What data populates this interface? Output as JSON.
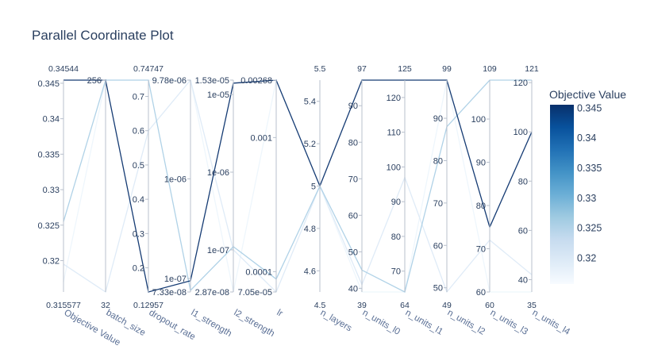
{
  "chart_data": {
    "type": "parallel-coordinates",
    "title": "Parallel Coordinate Plot",
    "colorbar": {
      "title": "Objective Value",
      "min": 0.315577,
      "max": 0.34544,
      "ticks": [
        "0.32",
        "0.325",
        "0.33",
        "0.335",
        "0.34",
        "0.345"
      ],
      "colorscale": [
        "#f7fbff",
        "#deebf7",
        "#c6dbef",
        "#9ecae1",
        "#6baed6",
        "#4292c6",
        "#2171b5",
        "#08519c",
        "#08306b"
      ]
    },
    "dimensions": [
      {
        "label": "Objective Value",
        "range_min": "0.315577",
        "range_max": "0.34544",
        "scale": "linear",
        "min": 0.315577,
        "max": 0.34544,
        "ticks": [
          {
            "v": 0.32,
            "t": "0.32"
          },
          {
            "v": 0.325,
            "t": "0.325"
          },
          {
            "v": 0.33,
            "t": "0.33"
          },
          {
            "v": 0.335,
            "t": "0.335"
          },
          {
            "v": 0.34,
            "t": "0.34"
          },
          {
            "v": 0.345,
            "t": "0.345"
          }
        ]
      },
      {
        "label": "batch_size",
        "range_min": "32",
        "range_max": "",
        "scale": "linear",
        "min": 32,
        "max": 256,
        "ticks": [
          {
            "v": 256,
            "t": "256"
          }
        ]
      },
      {
        "label": "dropout_rate",
        "range_min": "0.12957",
        "range_max": "0.74747",
        "scale": "linear",
        "min": 0.12957,
        "max": 0.74747,
        "ticks": [
          {
            "v": 0.2,
            "t": "0.2"
          },
          {
            "v": 0.3,
            "t": "0.3"
          },
          {
            "v": 0.4,
            "t": "0.4"
          },
          {
            "v": 0.5,
            "t": "0.5"
          },
          {
            "v": 0.6,
            "t": "0.6"
          },
          {
            "v": 0.7,
            "t": "0.7"
          }
        ]
      },
      {
        "label": "l1_strength",
        "range_min": "",
        "range_max": "",
        "scale": "log",
        "min": 7.33e-08,
        "max": 9.78e-06,
        "ticks": [
          {
            "v": 7.33e-08,
            "t": "7.33e-08"
          },
          {
            "v": 1e-07,
            "t": "1e-07"
          },
          {
            "v": 1e-06,
            "t": "1e-06"
          },
          {
            "v": 9.78e-06,
            "t": "9.78e-06"
          }
        ]
      },
      {
        "label": "l2_strength",
        "range_min": "",
        "range_max": "",
        "scale": "log",
        "min": 2.87e-08,
        "max": 1.53e-05,
        "ticks": [
          {
            "v": 2.87e-08,
            "t": "2.87e-08"
          },
          {
            "v": 1e-07,
            "t": "1e-07"
          },
          {
            "v": 1e-06,
            "t": "1e-06"
          },
          {
            "v": 1e-05,
            "t": "1e-05"
          },
          {
            "v": 1.53e-05,
            "t": "1.53e-05"
          }
        ]
      },
      {
        "label": "lr",
        "range_min": "",
        "range_max": "",
        "scale": "log",
        "min": 7.05e-05,
        "max": 0.00268,
        "ticks": [
          {
            "v": 7.05e-05,
            "t": "7.05e-05"
          },
          {
            "v": 0.0001,
            "t": "0.0001"
          },
          {
            "v": 0.001,
            "t": "0.001"
          },
          {
            "v": 0.00268,
            "t": "0.00268"
          }
        ]
      },
      {
        "label": "n_layers",
        "range_min": "4.5",
        "range_max": "5.5",
        "scale": "linear",
        "min": 4.5,
        "max": 5.5,
        "ticks": [
          {
            "v": 4.6,
            "t": "4.6"
          },
          {
            "v": 4.8,
            "t": "4.8"
          },
          {
            "v": 5,
            "t": "5"
          },
          {
            "v": 5.2,
            "t": "5.2"
          },
          {
            "v": 5.4,
            "t": "5.4"
          }
        ]
      },
      {
        "label": "n_units_l0",
        "range_min": "39",
        "range_max": "97",
        "scale": "linear",
        "min": 39,
        "max": 97,
        "ticks": [
          {
            "v": 40,
            "t": "40"
          },
          {
            "v": 50,
            "t": "50"
          },
          {
            "v": 60,
            "t": "60"
          },
          {
            "v": 70,
            "t": "70"
          },
          {
            "v": 80,
            "t": "80"
          },
          {
            "v": 90,
            "t": "90"
          }
        ]
      },
      {
        "label": "n_units_l1",
        "range_min": "64",
        "range_max": "125",
        "scale": "linear",
        "min": 64,
        "max": 125,
        "ticks": [
          {
            "v": 70,
            "t": "70"
          },
          {
            "v": 80,
            "t": "80"
          },
          {
            "v": 90,
            "t": "90"
          },
          {
            "v": 100,
            "t": "100"
          },
          {
            "v": 110,
            "t": "110"
          },
          {
            "v": 120,
            "t": "120"
          }
        ]
      },
      {
        "label": "n_units_l2",
        "range_min": "49",
        "range_max": "99",
        "scale": "linear",
        "min": 49,
        "max": 99,
        "ticks": [
          {
            "v": 50,
            "t": "50"
          },
          {
            "v": 60,
            "t": "60"
          },
          {
            "v": 70,
            "t": "70"
          },
          {
            "v": 80,
            "t": "80"
          },
          {
            "v": 90,
            "t": "90"
          }
        ]
      },
      {
        "label": "n_units_l3",
        "range_min": "60",
        "range_max": "109",
        "scale": "linear",
        "min": 60,
        "max": 109,
        "ticks": [
          {
            "v": 60,
            "t": "60"
          },
          {
            "v": 70,
            "t": "70"
          },
          {
            "v": 80,
            "t": "80"
          },
          {
            "v": 90,
            "t": "90"
          },
          {
            "v": 100,
            "t": "100"
          }
        ]
      },
      {
        "label": "n_units_l4",
        "range_min": "35",
        "range_max": "121",
        "scale": "linear",
        "min": 35,
        "max": 121,
        "ticks": [
          {
            "v": 40,
            "t": "40"
          },
          {
            "v": 60,
            "t": "60"
          },
          {
            "v": 80,
            "t": "80"
          },
          {
            "v": 100,
            "t": "100"
          },
          {
            "v": 120,
            "t": "120"
          }
        ]
      }
    ],
    "trials": [
      {
        "objective": 0.34544,
        "values": [
          0.34544,
          256,
          0.12957,
          9.5e-08,
          1.4e-05,
          0.00268,
          5,
          97,
          125,
          99,
          75,
          100
        ]
      },
      {
        "objective": 0.3255,
        "values": [
          0.3255,
          256,
          0.74747,
          7.6e-08,
          1.1e-07,
          8.8e-05,
          5,
          45,
          64,
          88,
          109,
          121
        ]
      },
      {
        "objective": 0.3195,
        "values": [
          0.3195,
          32,
          0.6,
          9.78e-06,
          1e-07,
          7.05e-05,
          5,
          41,
          97,
          49,
          72,
          42
        ]
      },
      {
        "objective": 0.317,
        "values": [
          0.317,
          256,
          0.74747,
          9.78e-06,
          2.87e-08,
          0.00268,
          5,
          39,
          64,
          99,
          60,
          35
        ]
      }
    ]
  }
}
